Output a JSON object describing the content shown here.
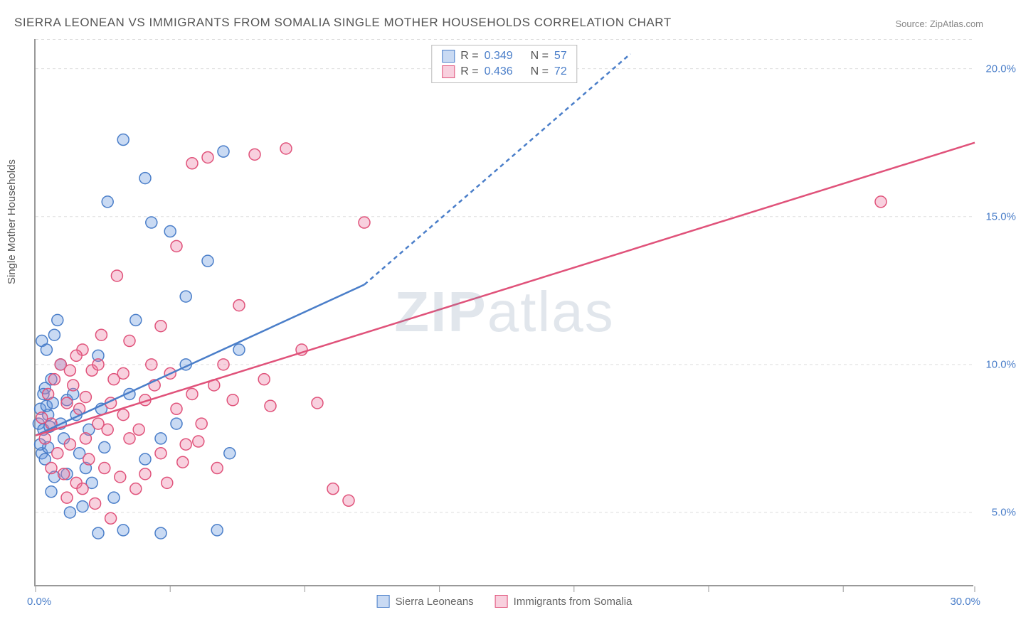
{
  "title": "SIERRA LEONEAN VS IMMIGRANTS FROM SOMALIA SINGLE MOTHER HOUSEHOLDS CORRELATION CHART",
  "source": "Source: ZipAtlas.com",
  "ylabel": "Single Mother Households",
  "watermark": "ZIPatlas",
  "chart": {
    "type": "scatter",
    "background_color": "#ffffff",
    "grid_color": "#dddddd",
    "grid_style": "dashed",
    "axis_color": "#999999",
    "xlim": [
      0,
      30
    ],
    "ylim": [
      2.5,
      21
    ],
    "xtick_positions": [
      0,
      4.3,
      8.6,
      12.9,
      17.2,
      21.5,
      25.8,
      30
    ],
    "xtick_labels_shown": {
      "first": "0.0%",
      "last": "30.0%"
    },
    "ytick_positions": [
      5,
      10,
      15,
      20
    ],
    "ytick_labels": [
      "5.0%",
      "10.0%",
      "15.0%",
      "20.0%"
    ],
    "marker_radius": 8,
    "marker_fill_opacity": 0.35,
    "marker_stroke_width": 1.5,
    "trend_line_width": 2.5,
    "trend_dash": "6,5",
    "label_fontsize": 15,
    "tick_color": "#4a7ec9"
  },
  "stats": {
    "series1": {
      "R": "0.349",
      "N": "57"
    },
    "series2": {
      "R": "0.436",
      "N": "72"
    }
  },
  "series": [
    {
      "name": "Sierra Leoneans",
      "color": "#4a7ec9",
      "fill": "rgba(100,150,220,0.35)",
      "trend": {
        "x1": 0,
        "y1": 7.6,
        "x2_solid": 10.5,
        "y2_solid": 12.7,
        "x2_dash": 19,
        "y2_dash": 20.5
      },
      "points": [
        [
          0.1,
          8.0
        ],
        [
          0.15,
          8.5
        ],
        [
          0.2,
          7.0
        ],
        [
          0.2,
          10.8
        ],
        [
          0.25,
          7.8
        ],
        [
          0.3,
          9.2
        ],
        [
          0.3,
          6.8
        ],
        [
          0.35,
          10.5
        ],
        [
          0.4,
          7.2
        ],
        [
          0.4,
          8.3
        ],
        [
          0.5,
          9.5
        ],
        [
          0.5,
          5.7
        ],
        [
          0.6,
          6.2
        ],
        [
          0.6,
          11.0
        ],
        [
          0.7,
          11.5
        ],
        [
          0.8,
          8.0
        ],
        [
          0.8,
          10.0
        ],
        [
          0.9,
          7.5
        ],
        [
          1.0,
          8.8
        ],
        [
          1.0,
          6.3
        ],
        [
          1.1,
          5.0
        ],
        [
          1.2,
          9.0
        ],
        [
          1.3,
          8.3
        ],
        [
          1.4,
          7.0
        ],
        [
          1.5,
          5.2
        ],
        [
          1.6,
          6.5
        ],
        [
          1.7,
          7.8
        ],
        [
          1.8,
          6.0
        ],
        [
          2.0,
          4.3
        ],
        [
          2.0,
          10.3
        ],
        [
          2.1,
          8.5
        ],
        [
          2.2,
          7.2
        ],
        [
          2.3,
          15.5
        ],
        [
          2.5,
          5.5
        ],
        [
          2.8,
          17.6
        ],
        [
          2.8,
          4.4
        ],
        [
          3.0,
          9.0
        ],
        [
          3.2,
          11.5
        ],
        [
          3.5,
          6.8
        ],
        [
          3.5,
          16.3
        ],
        [
          3.7,
          14.8
        ],
        [
          4.0,
          7.5
        ],
        [
          4.0,
          4.3
        ],
        [
          4.3,
          14.5
        ],
        [
          4.5,
          8.0
        ],
        [
          4.8,
          10.0
        ],
        [
          4.8,
          12.3
        ],
        [
          5.5,
          13.5
        ],
        [
          5.8,
          4.4
        ],
        [
          6.0,
          17.2
        ],
        [
          6.2,
          7.0
        ],
        [
          6.5,
          10.5
        ],
        [
          0.15,
          7.3
        ],
        [
          0.25,
          9.0
        ],
        [
          0.35,
          8.6
        ],
        [
          0.45,
          7.9
        ],
        [
          0.55,
          8.7
        ]
      ]
    },
    {
      "name": "Immigrants from Somalia",
      "color": "#e0527a",
      "fill": "rgba(235,120,160,0.35)",
      "trend": {
        "x1": 0,
        "y1": 7.6,
        "x2_solid": 30,
        "y2_solid": 17.5,
        "x2_dash": 30,
        "y2_dash": 17.5
      },
      "points": [
        [
          0.2,
          8.2
        ],
        [
          0.3,
          7.5
        ],
        [
          0.4,
          9.0
        ],
        [
          0.5,
          6.5
        ],
        [
          0.5,
          8.0
        ],
        [
          0.6,
          9.5
        ],
        [
          0.7,
          7.0
        ],
        [
          0.8,
          10.0
        ],
        [
          0.9,
          6.3
        ],
        [
          1.0,
          8.7
        ],
        [
          1.0,
          5.5
        ],
        [
          1.1,
          7.3
        ],
        [
          1.2,
          9.3
        ],
        [
          1.3,
          6.0
        ],
        [
          1.4,
          8.5
        ],
        [
          1.5,
          10.5
        ],
        [
          1.5,
          5.8
        ],
        [
          1.6,
          7.5
        ],
        [
          1.7,
          6.8
        ],
        [
          1.8,
          9.8
        ],
        [
          1.9,
          5.3
        ],
        [
          2.0,
          8.0
        ],
        [
          2.1,
          11.0
        ],
        [
          2.2,
          6.5
        ],
        [
          2.3,
          7.8
        ],
        [
          2.4,
          4.8
        ],
        [
          2.5,
          9.5
        ],
        [
          2.6,
          13.0
        ],
        [
          2.7,
          6.2
        ],
        [
          2.8,
          8.3
        ],
        [
          3.0,
          7.5
        ],
        [
          3.0,
          10.8
        ],
        [
          3.2,
          5.8
        ],
        [
          3.5,
          8.8
        ],
        [
          3.5,
          6.3
        ],
        [
          3.8,
          9.3
        ],
        [
          4.0,
          11.3
        ],
        [
          4.0,
          7.0
        ],
        [
          4.2,
          6.0
        ],
        [
          4.5,
          8.5
        ],
        [
          4.5,
          14.0
        ],
        [
          4.8,
          7.3
        ],
        [
          5.0,
          9.0
        ],
        [
          5.0,
          16.8
        ],
        [
          5.3,
          8.0
        ],
        [
          5.5,
          17.0
        ],
        [
          5.8,
          6.5
        ],
        [
          6.0,
          10.0
        ],
        [
          6.3,
          8.8
        ],
        [
          6.5,
          12.0
        ],
        [
          7.0,
          17.1
        ],
        [
          7.3,
          9.5
        ],
        [
          7.5,
          8.6
        ],
        [
          8.0,
          17.3
        ],
        [
          8.5,
          10.5
        ],
        [
          9.0,
          8.7
        ],
        [
          9.5,
          5.8
        ],
        [
          10.0,
          5.4
        ],
        [
          10.5,
          14.8
        ],
        [
          27.0,
          15.5
        ],
        [
          1.1,
          9.8
        ],
        [
          1.3,
          10.3
        ],
        [
          1.6,
          8.9
        ],
        [
          2.0,
          10.0
        ],
        [
          2.4,
          8.7
        ],
        [
          2.8,
          9.7
        ],
        [
          3.3,
          7.8
        ],
        [
          3.7,
          10.0
        ],
        [
          4.3,
          9.7
        ],
        [
          4.7,
          6.7
        ],
        [
          5.2,
          7.4
        ],
        [
          5.7,
          9.3
        ]
      ]
    }
  ],
  "legend": {
    "series1_label": "Sierra Leoneans",
    "series2_label": "Immigrants from Somalia"
  },
  "stat_labels": {
    "R": "R =",
    "N": "N ="
  }
}
